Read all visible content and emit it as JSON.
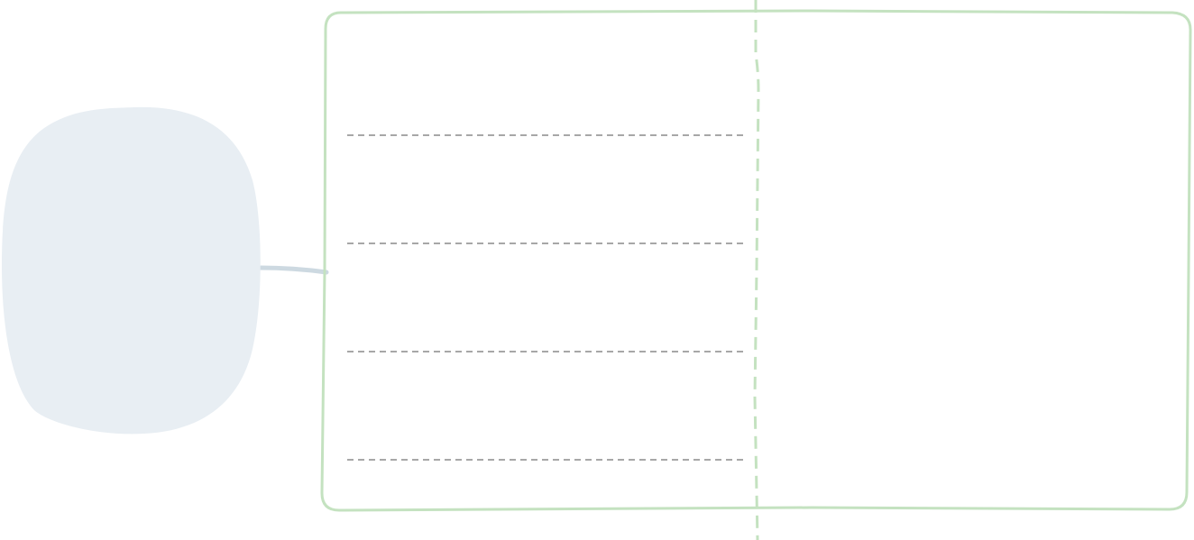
{
  "diagram": {
    "colors": {
      "background": "#ffffff",
      "blob_fill": "#e8eef3",
      "connector": "#cdd9e1",
      "frame_stroke": "#c4e2c0",
      "divider_stroke": "#c4e2c0",
      "rule_lines": "#8a8a8a"
    },
    "blob": {
      "label": ""
    },
    "frame": {
      "left_panel": {
        "rule_line_count": 4
      },
      "right_panel": {
        "label": ""
      }
    }
  }
}
